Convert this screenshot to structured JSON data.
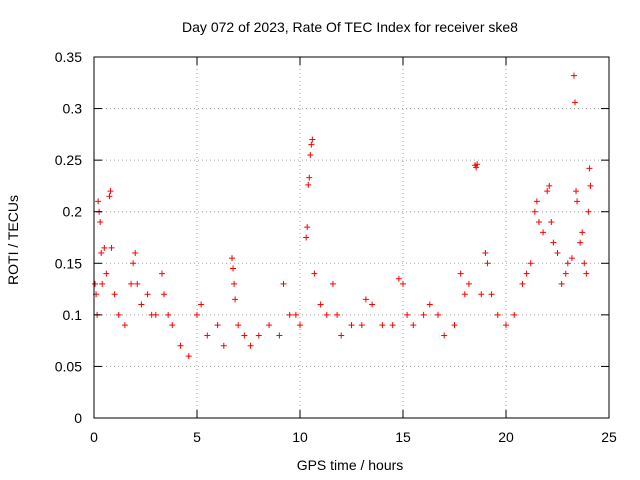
{
  "chart_data": {
    "type": "scatter",
    "title": "Day 072 of 2023, Rate Of TEC Index for receiver ske8",
    "xlabel": "GPS time / hours",
    "ylabel": "ROTI / TECUs",
    "xlim": [
      0,
      25
    ],
    "ylim": [
      0,
      0.35
    ],
    "x_ticks": [
      0,
      5,
      10,
      15,
      20,
      25
    ],
    "x_tick_labels": [
      "0",
      "5",
      "10",
      "15",
      "20",
      "25"
    ],
    "y_ticks": [
      0,
      0.05,
      0.1,
      0.15,
      0.2,
      0.25,
      0.3,
      0.35
    ],
    "y_tick_labels": [
      "0",
      "0.05",
      "0.1",
      "0.15",
      "0.2",
      "0.25",
      "0.3",
      "0.35"
    ],
    "grid": true,
    "marker": "plus",
    "color": "#ff0000",
    "series": [
      {
        "points": [
          [
            0.05,
            0.13
          ],
          [
            0.1,
            0.12
          ],
          [
            0.15,
            0.1
          ],
          [
            0.2,
            0.21
          ],
          [
            0.25,
            0.2
          ],
          [
            0.3,
            0.19
          ],
          [
            0.35,
            0.16
          ],
          [
            0.4,
            0.13
          ],
          [
            0.5,
            0.165
          ],
          [
            0.6,
            0.14
          ],
          [
            0.75,
            0.215
          ],
          [
            0.8,
            0.22
          ],
          [
            0.85,
            0.165
          ],
          [
            1.0,
            0.12
          ],
          [
            1.2,
            0.1
          ],
          [
            1.5,
            0.09
          ],
          [
            1.8,
            0.13
          ],
          [
            1.9,
            0.15
          ],
          [
            2.0,
            0.16
          ],
          [
            2.1,
            0.13
          ],
          [
            2.3,
            0.11
          ],
          [
            2.6,
            0.12
          ],
          [
            2.8,
            0.1
          ],
          [
            3.0,
            0.1
          ],
          [
            3.3,
            0.14
          ],
          [
            3.4,
            0.12
          ],
          [
            3.6,
            0.1
          ],
          [
            3.8,
            0.09
          ],
          [
            4.2,
            0.07
          ],
          [
            4.6,
            0.06
          ],
          [
            5.0,
            0.1
          ],
          [
            5.2,
            0.11
          ],
          [
            5.5,
            0.08
          ],
          [
            6.0,
            0.09
          ],
          [
            6.3,
            0.07
          ],
          [
            6.7,
            0.155
          ],
          [
            6.75,
            0.145
          ],
          [
            6.8,
            0.13
          ],
          [
            6.85,
            0.115
          ],
          [
            7.0,
            0.09
          ],
          [
            7.3,
            0.08
          ],
          [
            7.6,
            0.07
          ],
          [
            8.0,
            0.08
          ],
          [
            8.5,
            0.09
          ],
          [
            9.0,
            0.08
          ],
          [
            9.2,
            0.13
          ],
          [
            9.5,
            0.1
          ],
          [
            9.8,
            0.1
          ],
          [
            10.0,
            0.09
          ],
          [
            10.3,
            0.175
          ],
          [
            10.35,
            0.185
          ],
          [
            10.4,
            0.226
          ],
          [
            10.45,
            0.233
          ],
          [
            10.5,
            0.255
          ],
          [
            10.55,
            0.265
          ],
          [
            10.6,
            0.27
          ],
          [
            10.7,
            0.14
          ],
          [
            11.0,
            0.11
          ],
          [
            11.3,
            0.1
          ],
          [
            11.6,
            0.13
          ],
          [
            11.8,
            0.1
          ],
          [
            12.0,
            0.08
          ],
          [
            12.5,
            0.09
          ],
          [
            13.0,
            0.09
          ],
          [
            13.2,
            0.115
          ],
          [
            13.5,
            0.11
          ],
          [
            14.0,
            0.09
          ],
          [
            14.5,
            0.09
          ],
          [
            14.8,
            0.135
          ],
          [
            15.0,
            0.13
          ],
          [
            15.2,
            0.1
          ],
          [
            15.5,
            0.09
          ],
          [
            16.0,
            0.1
          ],
          [
            16.3,
            0.11
          ],
          [
            16.7,
            0.1
          ],
          [
            17.0,
            0.08
          ],
          [
            17.5,
            0.09
          ],
          [
            17.8,
            0.14
          ],
          [
            18.0,
            0.12
          ],
          [
            18.2,
            0.13
          ],
          [
            18.5,
            0.245
          ],
          [
            18.55,
            0.243
          ],
          [
            18.6,
            0.246
          ],
          [
            18.8,
            0.12
          ],
          [
            19.0,
            0.16
          ],
          [
            19.1,
            0.15
          ],
          [
            19.3,
            0.12
          ],
          [
            19.6,
            0.1
          ],
          [
            20.0,
            0.09
          ],
          [
            20.4,
            0.1
          ],
          [
            20.8,
            0.13
          ],
          [
            21.0,
            0.14
          ],
          [
            21.2,
            0.15
          ],
          [
            21.4,
            0.2
          ],
          [
            21.5,
            0.21
          ],
          [
            21.6,
            0.19
          ],
          [
            21.8,
            0.18
          ],
          [
            22.0,
            0.22
          ],
          [
            22.1,
            0.225
          ],
          [
            22.2,
            0.19
          ],
          [
            22.3,
            0.17
          ],
          [
            22.5,
            0.16
          ],
          [
            22.7,
            0.13
          ],
          [
            22.9,
            0.14
          ],
          [
            23.0,
            0.15
          ],
          [
            23.2,
            0.155
          ],
          [
            23.3,
            0.332
          ],
          [
            23.35,
            0.306
          ],
          [
            23.4,
            0.22
          ],
          [
            23.45,
            0.21
          ],
          [
            23.6,
            0.17
          ],
          [
            23.7,
            0.18
          ],
          [
            23.8,
            0.15
          ],
          [
            23.9,
            0.14
          ],
          [
            24.0,
            0.2
          ],
          [
            24.05,
            0.242
          ],
          [
            24.1,
            0.225
          ]
        ]
      }
    ]
  }
}
